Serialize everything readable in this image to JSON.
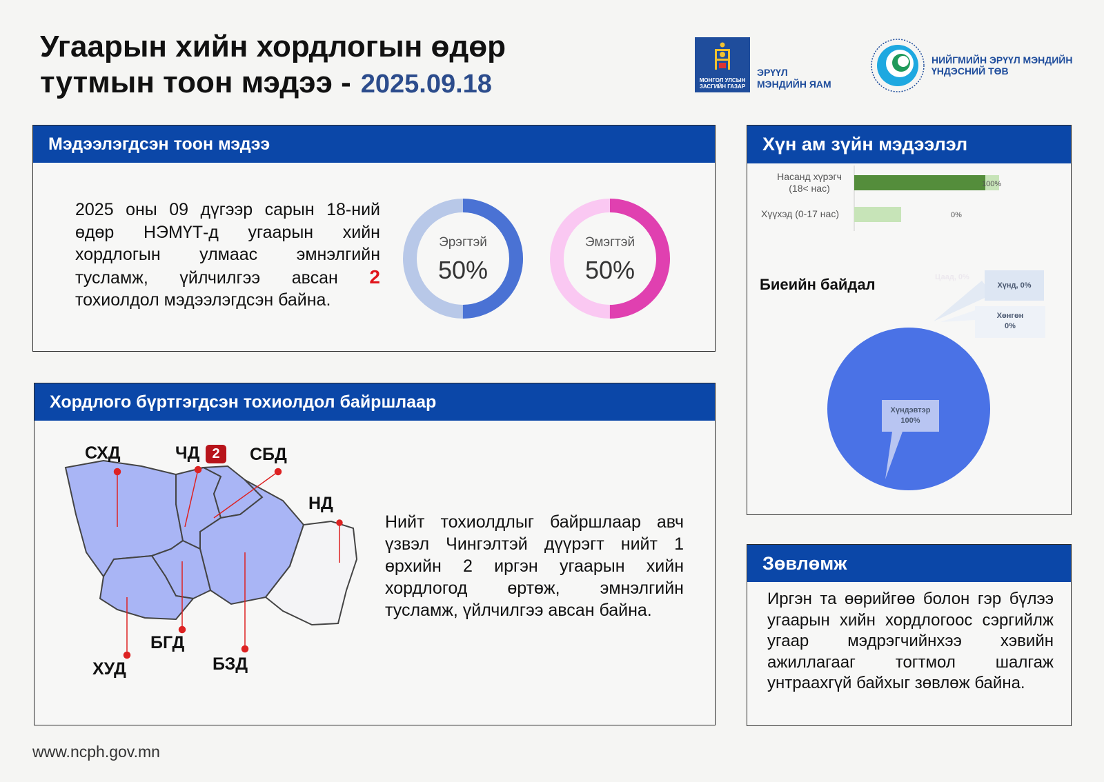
{
  "header": {
    "title_line1": "Угаарын хийн хордлогын өдөр",
    "title_line2": "тутмын тоон мэдээ -",
    "date": "2025.09.18"
  },
  "logos": {
    "ministry_box": "МОНГОЛ УЛСЫН ЗАСГИЙН ГАЗАР",
    "ministry_line1": "ЭРҮҮЛ",
    "ministry_line2": "МЭНДИЙН ЯАМ",
    "ncph_line1": "НИЙГМИЙН ЭРҮҮЛ МЭНДИЙН",
    "ncph_line2": "ҮНДЭСНИЙ ТӨВ"
  },
  "reported": {
    "heading": "Мэдээлэгдсэн тоон мэдээ",
    "text_before": "2025 оны 09 дүгээр сарын 18-ний өдөр НЭМҮТ-д угаарын хийн хордлогын улмаас эмнэлгийн тусламж, үйлчилгээ авсан ",
    "count": "2",
    "text_after": " тохиолдол мэдээлэгдсэн байна.",
    "male_label": "Эрэгтэй",
    "male_pct": "50%",
    "female_label": "Эмэгтэй",
    "female_pct": "50%",
    "male_fraction": 0.5,
    "female_fraction": 0.5,
    "colors": {
      "male": "#4a72d4",
      "male_bg": "#b8c8e8",
      "female": "#e040b0",
      "female_bg": "#fac8f2"
    }
  },
  "location": {
    "heading": "Хордлого бүртгэгдсэн тохиолдол байршлаар",
    "districts": {
      "shd": "СХД",
      "chd": "ЧД",
      "chd_count": "2",
      "sbd": "СБД",
      "nd": "НД",
      "bgd": "БГД",
      "hud": "ХУД",
      "bzd": "БЗД"
    },
    "text": "Нийт тохиолдлыг байршлаар авч үзвэл Чингэлтэй дүүрэгт нийт 1 өрхийн 2 иргэн угаарын хийн хордлогод өртөж, эмнэлгийн тусламж, үйлчилгээ авсан байна."
  },
  "demographics": {
    "heading": "Хүн ам зүйн мэдээлэл",
    "adult_label_1": "Насанд хүрэгч",
    "adult_label_2": "(18< нас)",
    "adult_value": "100%",
    "child_label": "Хүүхэд (0-17 нас)",
    "child_value": "0%",
    "body_title": "Биеийн байдал",
    "faded_label": "Цаад, 0%",
    "severe_label": "Хүнд, 0%",
    "mild_label_1": "Хөнгөн",
    "mild_label_2": "0%",
    "moderate_label_1": "Хүндэвтэр",
    "moderate_label_2": "100%"
  },
  "chart_data": [
    {
      "type": "bar",
      "categories": [
        "Насанд хүрэгч (18< нас)",
        "Хүүхэд (0-17 нас)"
      ],
      "values": [
        100,
        0
      ],
      "xlabel": "",
      "ylabel": ""
    },
    {
      "type": "pie",
      "title": "Биеийн байдал",
      "categories": [
        "Хүнд",
        "Хөнгөн",
        "Хүндэвтэр"
      ],
      "values": [
        0,
        0,
        100
      ]
    }
  ],
  "advice": {
    "heading": "Зөвлөмж",
    "text": "Иргэн та өөрийгөө болон гэр бүлээ угаарын хийн хордлогоос сэргийлж угаар мэдрэгчийнхээ хэвийн ажиллагааг тогтмол шалгаж унтраахгүй байхыг зөвлөж байна."
  },
  "footer": {
    "url": "www.ncph.gov.mn"
  }
}
